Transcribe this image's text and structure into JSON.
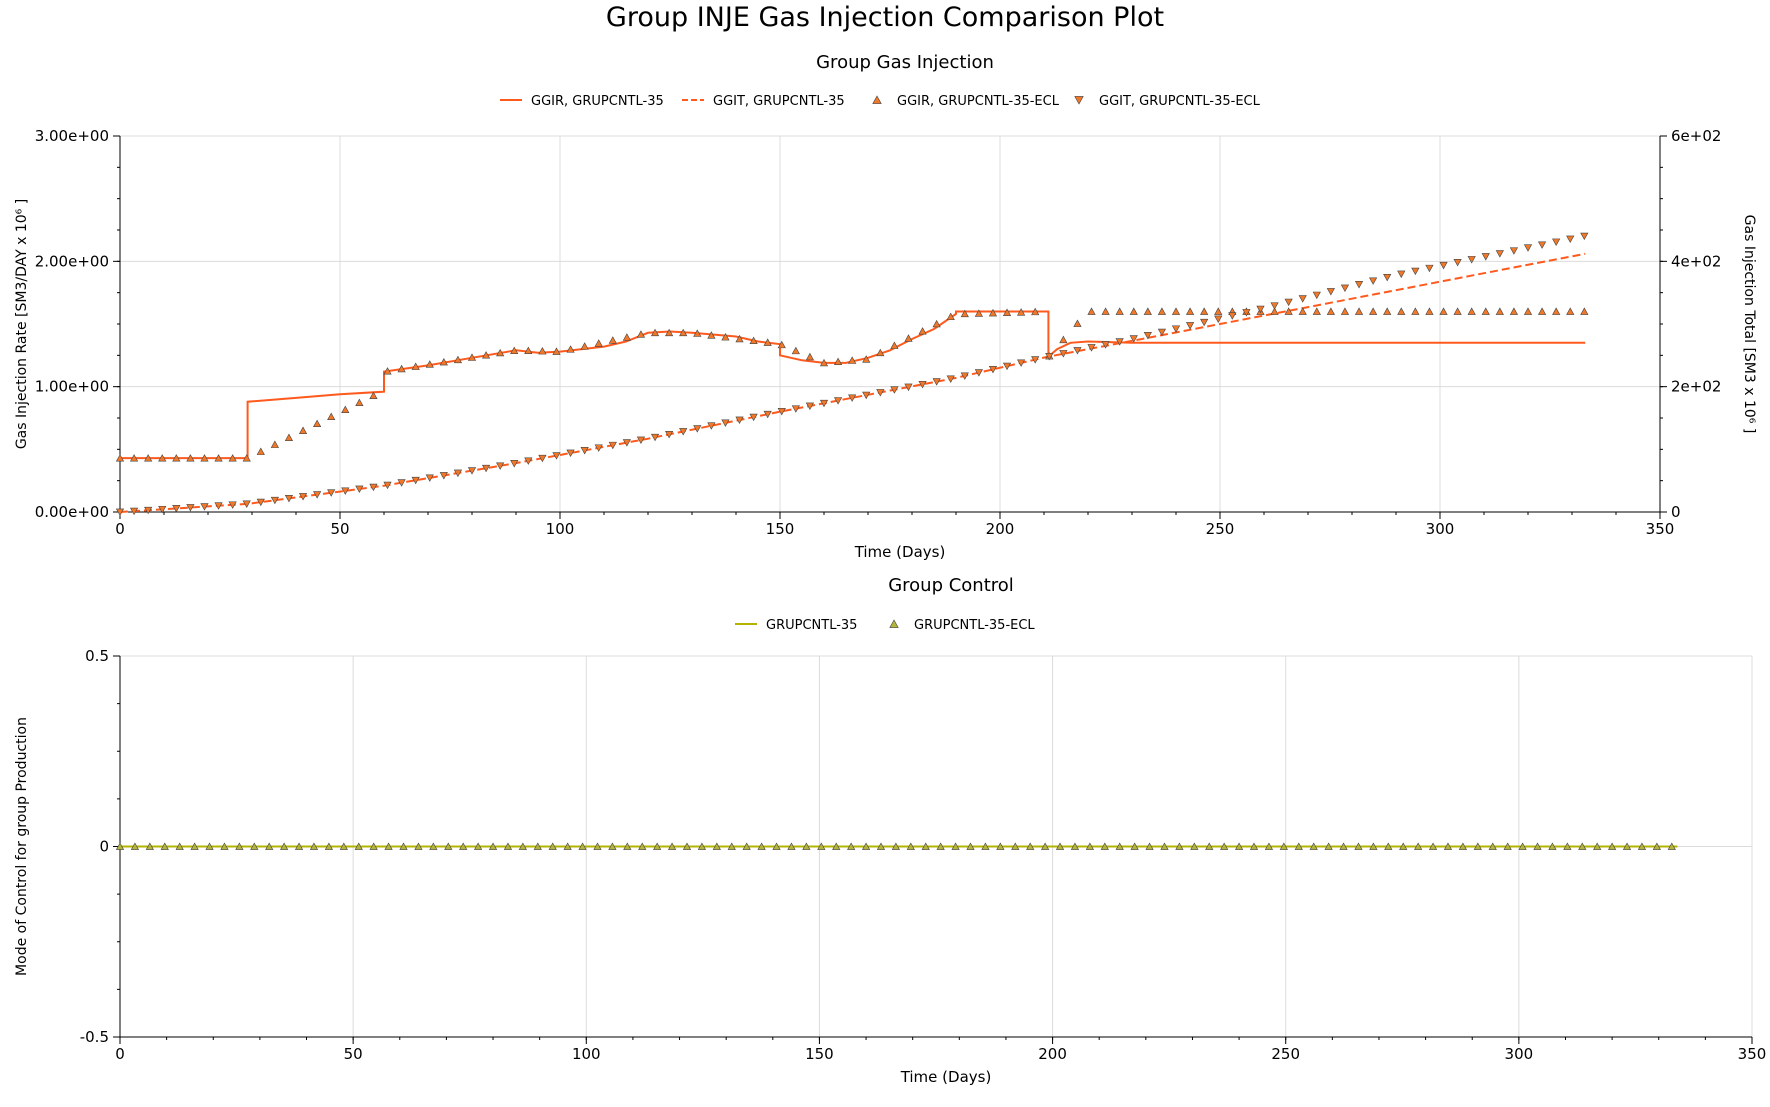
{
  "title": "Group INJE Gas Injection Comparison Plot",
  "colors": {
    "orange": "#ff5a1e",
    "orange_marker": "#f07828",
    "olive": "#b4b400",
    "olive_marker": "#b4b43c",
    "grid": "#dcdcdc",
    "axis": "#000000"
  },
  "chart_data": [
    {
      "type": "line",
      "title": "Group Gas Injection",
      "xlabel": "Time (Days)",
      "ylabel": "Gas Injection Rate [SM3/DAY x 10⁶ ]",
      "y2label": "Gas Injection Total [SM3 x 10⁶ ]",
      "xlim": [
        0,
        350
      ],
      "ylim": [
        0,
        3
      ],
      "y2lim": [
        0,
        600
      ],
      "xticks": [
        0,
        50,
        100,
        150,
        200,
        250,
        300,
        350
      ],
      "xtick_labels": [
        "0",
        "50",
        "100",
        "150",
        "200",
        "250",
        "300",
        "350"
      ],
      "yticks": [
        0,
        1,
        2,
        3
      ],
      "ytick_labels": [
        "0.00e+00",
        "1.00e+00",
        "2.00e+00",
        "3.00e+00"
      ],
      "y2ticks": [
        0,
        200,
        400,
        600
      ],
      "y2tick_labels": [
        "0",
        "2e+02",
        "4e+02",
        "6e+02"
      ],
      "grid": true,
      "legend_position": "top",
      "series": [
        {
          "name": "GGIR, GRUPCNTL-35",
          "axis": "left",
          "style": "solid",
          "color": "#ff5a1e",
          "x": [
            0,
            29,
            29,
            40,
            50,
            60,
            60,
            70,
            80,
            90,
            95,
            100,
            110,
            115,
            120,
            125,
            130,
            140,
            145,
            150,
            150,
            155,
            160,
            165,
            170,
            175,
            180,
            185,
            190,
            190,
            200,
            211,
            211,
            213,
            216,
            220,
            230,
            250,
            270,
            290,
            310,
            333
          ],
          "y": [
            0.43,
            0.43,
            0.88,
            0.91,
            0.94,
            0.96,
            1.12,
            1.17,
            1.23,
            1.29,
            1.27,
            1.28,
            1.32,
            1.36,
            1.43,
            1.44,
            1.43,
            1.4,
            1.36,
            1.34,
            1.25,
            1.21,
            1.19,
            1.19,
            1.23,
            1.29,
            1.38,
            1.46,
            1.58,
            1.6,
            1.6,
            1.6,
            1.24,
            1.3,
            1.35,
            1.36,
            1.35,
            1.35,
            1.35,
            1.35,
            1.35,
            1.35
          ]
        },
        {
          "name": "GGIT, GRUPCNTL-35",
          "axis": "right",
          "style": "dashed",
          "color": "#ff5a1e",
          "x": [
            0,
            29,
            60,
            90,
            120,
            150,
            190,
            211,
            230,
            250,
            270,
            290,
            310,
            333
          ],
          "y": [
            0,
            13,
            42,
            78,
            117,
            160,
            214,
            248,
            273,
            300,
            327,
            354,
            381,
            412
          ]
        },
        {
          "name": "GGIR, GRUPCNTL-35-ECL",
          "axis": "left",
          "marker": "triangle-up",
          "color": "#f07828",
          "x": [
            0,
            29,
            60,
            60.1,
            90,
            100,
            120,
            130,
            150,
            160,
            170,
            190,
            211,
            211.1,
            216,
            220,
            334
          ],
          "y": [
            0.43,
            0.43,
            0.97,
            1.12,
            1.29,
            1.28,
            1.43,
            1.43,
            1.34,
            1.19,
            1.22,
            1.58,
            1.6,
            1.24,
            1.44,
            1.6,
            1.6
          ]
        },
        {
          "name": "GGIT, GRUPCNTL-35-ECL",
          "axis": "right",
          "marker": "triangle-down",
          "color": "#f07828",
          "x": [
            0,
            29,
            60,
            90,
            120,
            150,
            190,
            211,
            230,
            260,
            290,
            334
          ],
          "y": [
            0,
            13,
            42,
            78,
            117,
            160,
            214,
            248,
            276,
            325,
            378,
            442
          ]
        }
      ]
    },
    {
      "type": "line",
      "title": "Group Control",
      "xlabel": "Time (Days)",
      "ylabel": "Mode of Control for group Production",
      "xlim": [
        0,
        350
      ],
      "ylim": [
        -0.5,
        0.5
      ],
      "xticks": [
        0,
        50,
        100,
        150,
        200,
        250,
        300,
        350
      ],
      "xtick_labels": [
        "0",
        "50",
        "100",
        "150",
        "200",
        "250",
        "300",
        "350"
      ],
      "yticks": [
        -0.5,
        0,
        0.5
      ],
      "ytick_labels": [
        "-0.5",
        "0",
        "0.5"
      ],
      "grid": true,
      "legend_position": "top",
      "series": [
        {
          "name": "GRUPCNTL-35",
          "style": "solid",
          "color": "#b4b400",
          "x": [
            0,
            334
          ],
          "y": [
            0,
            0
          ]
        },
        {
          "name": "GRUPCNTL-35-ECL",
          "marker": "triangle-up",
          "color": "#b4b43c",
          "x": [
            0,
            334
          ],
          "y": [
            0,
            0
          ]
        }
      ]
    }
  ]
}
